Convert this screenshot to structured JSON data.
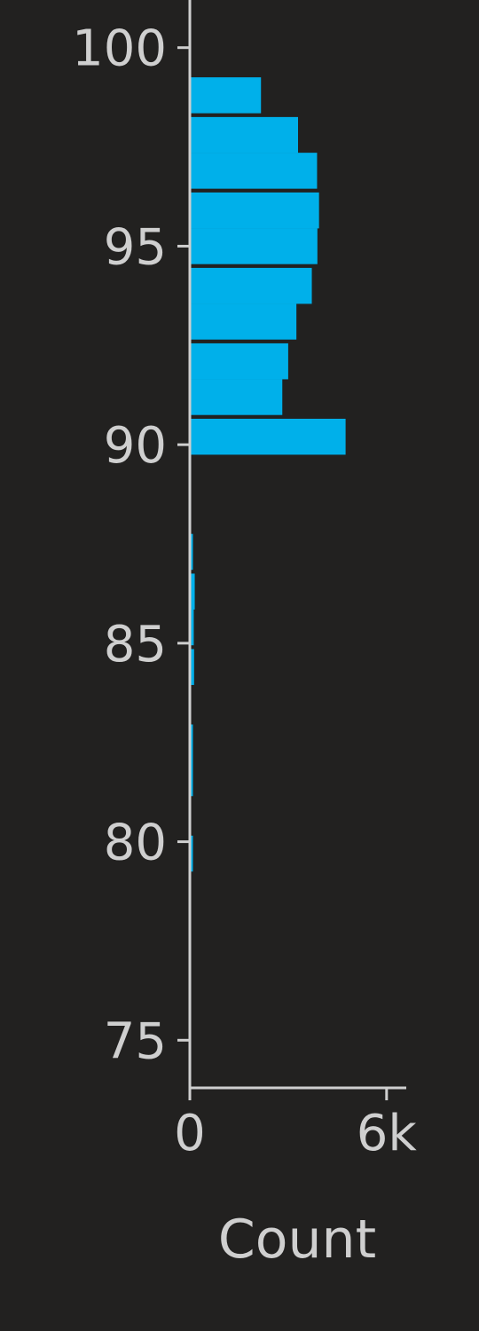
{
  "chart_data": {
    "type": "bar",
    "orientation": "horizontal",
    "title": "",
    "xlabel": "Count",
    "ylabel": "",
    "bar_color": "#00b0ea",
    "background_color": "#222120",
    "axis_color": "#cfcfcf",
    "grid": false,
    "xlim": [
      0,
      6600
    ],
    "ylim": [
      73.8,
      101.2
    ],
    "x_ticks": [
      {
        "value": 0,
        "label": "0"
      },
      {
        "value": 6000,
        "label": "6k"
      }
    ],
    "y_ticks": [
      {
        "value": 75,
        "label": "75"
      },
      {
        "value": 80,
        "label": "80"
      },
      {
        "value": 85,
        "label": "85"
      },
      {
        "value": 90,
        "label": "90"
      },
      {
        "value": 95,
        "label": "95"
      },
      {
        "value": 100,
        "label": "100"
      }
    ],
    "bin_width": 0.95,
    "bins": [
      {
        "center": 79.7,
        "count": 90
      },
      {
        "center": 81.6,
        "count": 40
      },
      {
        "center": 82.5,
        "count": 60
      },
      {
        "center": 84.4,
        "count": 130
      },
      {
        "center": 85.4,
        "count": 120
      },
      {
        "center": 86.3,
        "count": 150
      },
      {
        "center": 87.3,
        "count": 70
      },
      {
        "center": 90.2,
        "count": 4750
      },
      {
        "center": 91.2,
        "count": 2820
      },
      {
        "center": 92.1,
        "count": 3000
      },
      {
        "center": 93.1,
        "count": 3250
      },
      {
        "center": 94.0,
        "count": 3720
      },
      {
        "center": 95.0,
        "count": 3890
      },
      {
        "center": 95.9,
        "count": 3940
      },
      {
        "center": 96.9,
        "count": 3880
      },
      {
        "center": 97.8,
        "count": 3300
      },
      {
        "center": 98.8,
        "count": 2170
      }
    ]
  }
}
